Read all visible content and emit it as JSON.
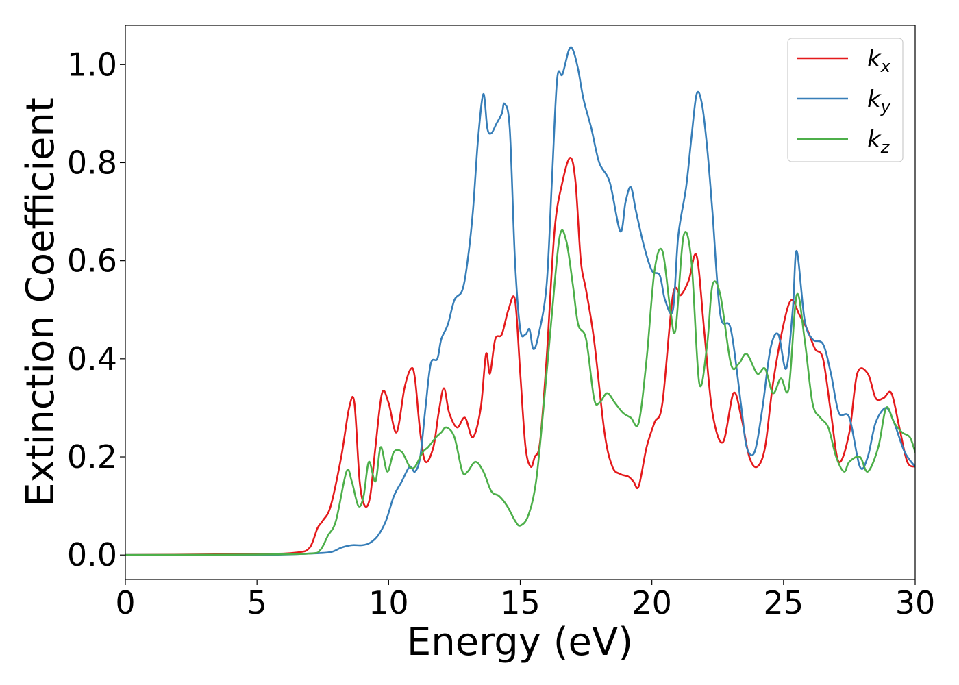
{
  "chart_data": {
    "type": "line",
    "xlabel": "Energy (eV)",
    "ylabel": "Extinction Coefficient",
    "xlim": [
      0,
      30
    ],
    "ylim": [
      -0.05,
      1.08
    ],
    "xticks": [
      0,
      5,
      10,
      15,
      20,
      25,
      30
    ],
    "yticks": [
      0.0,
      0.2,
      0.4,
      0.6,
      0.8,
      1.0
    ],
    "xtick_labels": [
      "0",
      "5",
      "10",
      "15",
      "20",
      "25",
      "30"
    ],
    "ytick_labels": [
      "0.0",
      "0.2",
      "0.4",
      "0.6",
      "0.8",
      "1.0"
    ],
    "grid": false,
    "legend_position": "top-right",
    "series": [
      {
        "name": "k_x",
        "label_base": "k",
        "label_sub": "x",
        "color": "#e41a1c",
        "x": [
          0,
          5,
          6.5,
          7.0,
          7.3,
          7.5,
          7.8,
          8.2,
          8.5,
          8.7,
          8.9,
          9.1,
          9.3,
          9.5,
          9.75,
          10.0,
          10.3,
          10.6,
          10.85,
          11.0,
          11.2,
          11.4,
          11.7,
          11.9,
          12.1,
          12.3,
          12.6,
          12.9,
          13.2,
          13.5,
          13.7,
          13.85,
          14.05,
          14.3,
          14.55,
          14.8,
          15.0,
          15.2,
          15.4,
          15.55,
          15.75,
          16.0,
          16.3,
          16.6,
          16.9,
          17.1,
          17.3,
          17.5,
          17.8,
          18.2,
          18.5,
          18.8,
          19.1,
          19.3,
          19.5,
          19.8,
          20.1,
          20.4,
          20.8,
          21.1,
          21.4,
          21.7,
          22.0,
          22.3,
          22.7,
          23.1,
          23.4,
          23.7,
          24.0,
          24.3,
          24.6,
          25.0,
          25.3,
          25.6,
          25.9,
          26.2,
          26.5,
          26.8,
          27.1,
          27.5,
          27.8,
          28.2,
          28.5,
          28.8,
          29.1,
          29.4,
          29.7,
          30.0
        ],
        "y": [
          0.0,
          0.002,
          0.005,
          0.015,
          0.055,
          0.07,
          0.1,
          0.2,
          0.3,
          0.31,
          0.15,
          0.1,
          0.12,
          0.22,
          0.33,
          0.31,
          0.25,
          0.34,
          0.38,
          0.36,
          0.25,
          0.19,
          0.22,
          0.29,
          0.34,
          0.29,
          0.26,
          0.28,
          0.24,
          0.3,
          0.41,
          0.37,
          0.44,
          0.45,
          0.5,
          0.52,
          0.37,
          0.22,
          0.18,
          0.2,
          0.23,
          0.4,
          0.66,
          0.76,
          0.81,
          0.76,
          0.6,
          0.54,
          0.44,
          0.25,
          0.18,
          0.165,
          0.16,
          0.15,
          0.14,
          0.22,
          0.27,
          0.31,
          0.53,
          0.53,
          0.56,
          0.61,
          0.45,
          0.29,
          0.23,
          0.33,
          0.28,
          0.2,
          0.18,
          0.22,
          0.35,
          0.47,
          0.52,
          0.49,
          0.46,
          0.42,
          0.4,
          0.29,
          0.19,
          0.25,
          0.37,
          0.37,
          0.32,
          0.32,
          0.33,
          0.26,
          0.19,
          0.18
        ]
      },
      {
        "name": "k_y",
        "label_base": "k",
        "label_sub": "y",
        "color": "#377eb8",
        "x": [
          0,
          5,
          7.0,
          7.8,
          8.2,
          8.6,
          9.0,
          9.3,
          9.6,
          9.9,
          10.2,
          10.5,
          10.8,
          11.0,
          11.2,
          11.4,
          11.6,
          11.85,
          12.0,
          12.25,
          12.5,
          12.8,
          13.0,
          13.2,
          13.4,
          13.6,
          13.75,
          13.9,
          14.1,
          14.3,
          14.4,
          14.6,
          14.8,
          15.0,
          15.2,
          15.35,
          15.5,
          15.7,
          16.0,
          16.2,
          16.4,
          16.6,
          16.85,
          17.0,
          17.2,
          17.4,
          17.7,
          18.0,
          18.4,
          18.8,
          19.0,
          19.2,
          19.4,
          19.7,
          20.0,
          20.3,
          20.5,
          20.8,
          21.0,
          21.3,
          21.5,
          21.7,
          21.9,
          22.1,
          22.3,
          22.6,
          23.0,
          23.4,
          23.6,
          23.9,
          24.2,
          24.5,
          24.8,
          25.1,
          25.35,
          25.5,
          25.8,
          26.1,
          26.5,
          26.8,
          27.1,
          27.5,
          27.9,
          28.2,
          28.5,
          28.9,
          29.2,
          29.6,
          30.0
        ],
        "y": [
          0.0,
          0.0,
          0.003,
          0.006,
          0.015,
          0.02,
          0.02,
          0.025,
          0.04,
          0.07,
          0.12,
          0.15,
          0.18,
          0.17,
          0.2,
          0.3,
          0.39,
          0.4,
          0.44,
          0.47,
          0.52,
          0.54,
          0.6,
          0.7,
          0.85,
          0.94,
          0.87,
          0.86,
          0.88,
          0.9,
          0.92,
          0.87,
          0.6,
          0.46,
          0.45,
          0.46,
          0.42,
          0.45,
          0.55,
          0.76,
          0.97,
          0.98,
          1.03,
          1.03,
          0.99,
          0.93,
          0.87,
          0.8,
          0.76,
          0.66,
          0.72,
          0.75,
          0.7,
          0.63,
          0.58,
          0.57,
          0.52,
          0.5,
          0.65,
          0.75,
          0.85,
          0.94,
          0.92,
          0.83,
          0.7,
          0.49,
          0.46,
          0.3,
          0.22,
          0.21,
          0.3,
          0.42,
          0.45,
          0.38,
          0.5,
          0.62,
          0.48,
          0.44,
          0.43,
          0.37,
          0.29,
          0.28,
          0.18,
          0.2,
          0.27,
          0.3,
          0.27,
          0.21,
          0.18
        ]
      },
      {
        "name": "k_z",
        "label_base": "k",
        "label_sub": "z",
        "color": "#4daf4a",
        "x": [
          0,
          5,
          7.0,
          7.4,
          7.7,
          8.0,
          8.4,
          8.6,
          8.85,
          9.05,
          9.25,
          9.5,
          9.7,
          9.95,
          10.2,
          10.5,
          10.8,
          11.0,
          11.3,
          11.5,
          11.8,
          12.0,
          12.2,
          12.5,
          12.8,
          13.0,
          13.3,
          13.6,
          13.9,
          14.2,
          14.5,
          14.8,
          15.0,
          15.3,
          15.6,
          15.9,
          16.2,
          16.5,
          16.75,
          17.0,
          17.2,
          17.5,
          17.8,
          18.0,
          18.3,
          18.6,
          18.9,
          19.2,
          19.5,
          19.8,
          20.1,
          20.4,
          20.7,
          20.9,
          21.2,
          21.5,
          21.8,
          22.1,
          22.3,
          22.6,
          23.0,
          23.3,
          23.6,
          24.0,
          24.3,
          24.6,
          24.9,
          25.2,
          25.5,
          25.8,
          26.1,
          26.4,
          26.7,
          27.0,
          27.3,
          27.5,
          27.9,
          28.2,
          28.6,
          28.9,
          29.2,
          29.5,
          29.8,
          30.0
        ],
        "y": [
          0.0,
          0.001,
          0.003,
          0.01,
          0.04,
          0.07,
          0.17,
          0.15,
          0.1,
          0.12,
          0.19,
          0.15,
          0.22,
          0.17,
          0.21,
          0.21,
          0.18,
          0.18,
          0.21,
          0.22,
          0.24,
          0.25,
          0.26,
          0.24,
          0.17,
          0.17,
          0.19,
          0.17,
          0.13,
          0.12,
          0.1,
          0.07,
          0.06,
          0.08,
          0.15,
          0.31,
          0.49,
          0.65,
          0.64,
          0.55,
          0.47,
          0.44,
          0.32,
          0.31,
          0.33,
          0.31,
          0.29,
          0.28,
          0.27,
          0.4,
          0.58,
          0.62,
          0.5,
          0.46,
          0.65,
          0.6,
          0.35,
          0.43,
          0.55,
          0.53,
          0.39,
          0.39,
          0.41,
          0.37,
          0.38,
          0.33,
          0.36,
          0.34,
          0.53,
          0.44,
          0.31,
          0.28,
          0.26,
          0.2,
          0.17,
          0.19,
          0.2,
          0.17,
          0.22,
          0.3,
          0.27,
          0.25,
          0.24,
          0.21
        ]
      }
    ]
  }
}
